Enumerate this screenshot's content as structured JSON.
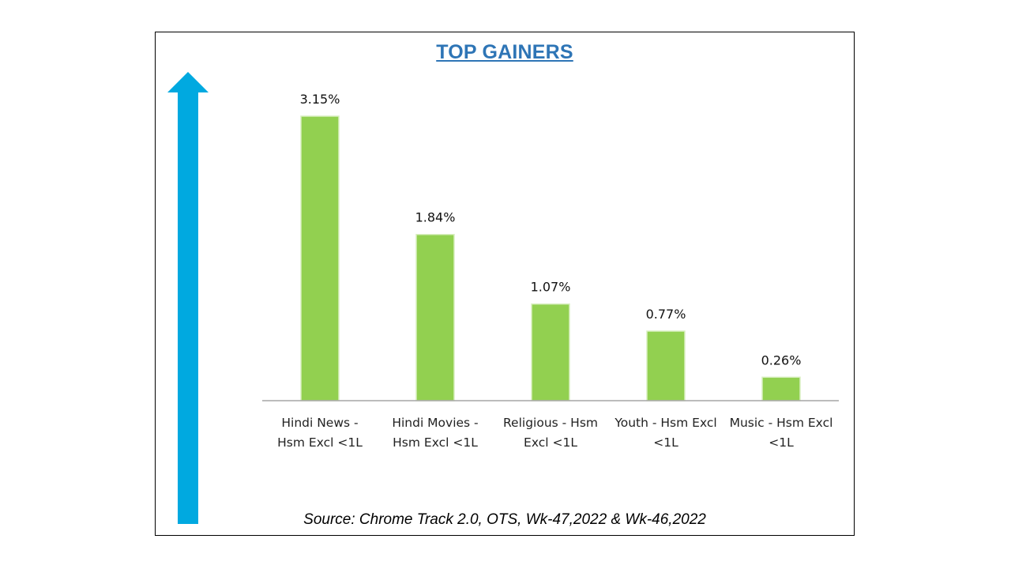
{
  "colors": {
    "bar": "#92D050",
    "arrow": "#00A9E0",
    "title": "#2E75B6",
    "axis": "#A6A6A6"
  },
  "source_text": "Source: Chrome Track 2.0, OTS, Wk-47,2022 & Wk-46,2022",
  "chart_data": {
    "type": "bar",
    "title": "TOP GAINERS",
    "categories": [
      [
        "Hindi News -",
        "Hsm Excl <1L"
      ],
      [
        "Hindi Movies -",
        "Hsm Excl <1L"
      ],
      [
        "Religious - Hsm",
        "Excl <1L"
      ],
      [
        "Youth - Hsm Excl",
        "<1L"
      ],
      [
        "Music - Hsm Excl",
        "<1L"
      ]
    ],
    "values": [
      3.15,
      1.84,
      1.07,
      0.77,
      0.26
    ],
    "data_labels": [
      "3.15%",
      "1.84%",
      "1.07%",
      "0.77%",
      "0.26%"
    ],
    "xlabel": "",
    "ylabel": "",
    "ylim": [
      0,
      3.15
    ],
    "grid": false,
    "legend": "none"
  }
}
